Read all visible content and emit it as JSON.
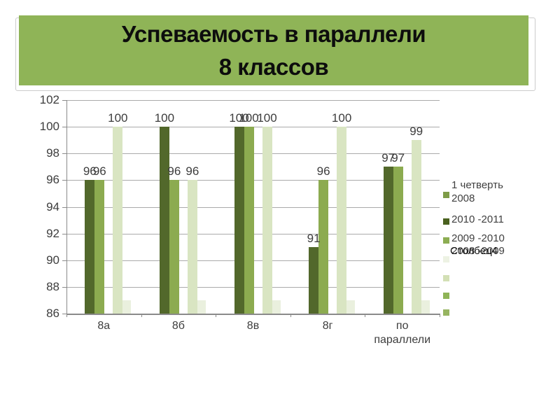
{
  "slide": {
    "title_line1": "Успеваемость в параллели",
    "title_line2": "8 классов",
    "title_bg": "#8FB457"
  },
  "chart_data": {
    "type": "bar",
    "title": "Успеваемость в параллели 8 классов",
    "categories": [
      "8а",
      "8б",
      "8в",
      "8г",
      "по параллели"
    ],
    "series": [
      {
        "name": "2010 -2011",
        "key": "2010-2011",
        "color": "#52682B",
        "values": [
          96,
          100,
          100,
          91,
          97
        ],
        "show_labels": true
      },
      {
        "name": "1 четверть 2008",
        "key": "1-chetvert-2008",
        "color": "#8CAB50",
        "values": [
          96,
          96,
          100,
          96,
          97
        ],
        "show_labels": true
      },
      {
        "name": "2009 -2010",
        "key": "2009-2010",
        "color": "#D9E5C2",
        "values": [
          100,
          96,
          100,
          100,
          99
        ],
        "show_labels": true
      },
      {
        "name": "",
        "key": "unlabeled-stub",
        "color": "#EAF0DE",
        "values": [
          87,
          87,
          87,
          87,
          87
        ],
        "show_labels": false
      }
    ],
    "xlabel": "",
    "ylabel": "",
    "ylim": [
      86,
      102
    ],
    "yticks": [
      86,
      88,
      90,
      92,
      94,
      96,
      98,
      100,
      102
    ],
    "grid": true,
    "legend_position": "right"
  },
  "legend": {
    "entries": [
      {
        "label": "1 четверть 2008",
        "color": "#7E9C48"
      },
      {
        "label": "2010 -2011",
        "color": "#4A611F"
      },
      {
        "label": "2009 -2010",
        "color": "#8CAD52"
      },
      {
        "label": "2008 -2009",
        "overlay": "Столбец4",
        "color": "#EDF2E3"
      },
      {
        "label": "",
        "color": "#D3E0B5"
      },
      {
        "label": "",
        "color": "#8FB457"
      },
      {
        "label": "",
        "color": "#97B561"
      }
    ]
  },
  "colors": {
    "title_background": "#8FB457",
    "gridline": "#AAAAAA",
    "axis": "#8A8A8A",
    "text": "#3D3D3D"
  }
}
